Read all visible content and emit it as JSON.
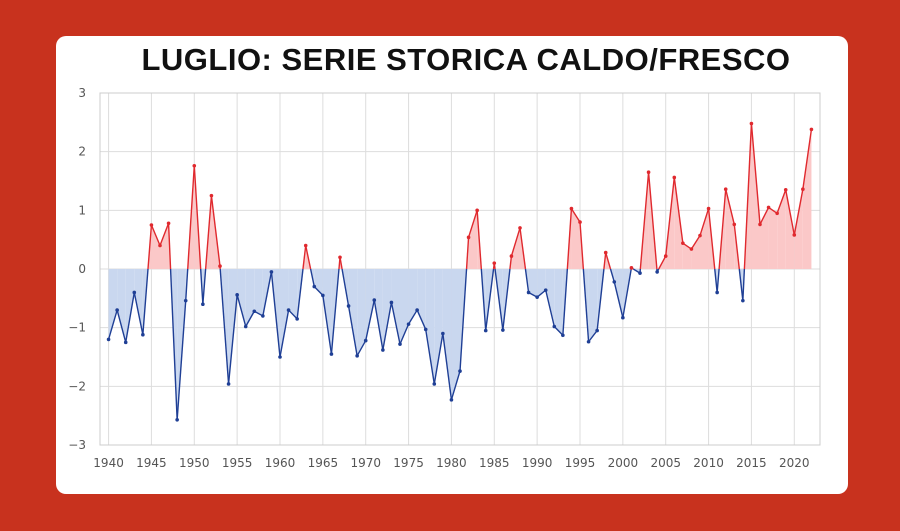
{
  "title": "LUGLIO: SERIE STORICA CALDO/FRESCO",
  "colors": {
    "background": "#c8321e",
    "warm_line": "#e0292e",
    "warm_fill": "#fbc8c8",
    "cool_line": "#1f3f95",
    "cool_fill": "#c9d7ef",
    "grid": "#dddddd"
  },
  "chart_data": {
    "type": "area",
    "title": "LUGLIO: SERIE STORICA CALDO/FRESCO",
    "xlabel": "",
    "ylabel": "",
    "xlim": [
      1939,
      2023
    ],
    "ylim": [
      -3,
      3
    ],
    "x_ticks": [
      1940,
      1945,
      1950,
      1955,
      1960,
      1965,
      1970,
      1975,
      1980,
      1985,
      1990,
      1995,
      2000,
      2005,
      2010,
      2015,
      2020
    ],
    "y_ticks": [
      -3,
      -2,
      -1,
      0,
      1,
      2,
      3
    ],
    "grid": true,
    "series": [
      {
        "x": [
          1940,
          1941,
          1942,
          1943,
          1944,
          1945,
          1946,
          1947,
          1948,
          1949,
          1950,
          1951,
          1952,
          1953,
          1954,
          1955,
          1956,
          1957,
          1958,
          1959,
          1960,
          1961,
          1962,
          1963,
          1964,
          1965,
          1966,
          1967,
          1968,
          1969,
          1970,
          1971,
          1972,
          1973,
          1974,
          1975,
          1976,
          1977,
          1978,
          1979,
          1980,
          1981,
          1982,
          1983,
          1984,
          1985,
          1986,
          1987,
          1988,
          1989,
          1990,
          1991,
          1992,
          1993,
          1994,
          1995,
          1996,
          1997,
          1998,
          1999,
          2000,
          2001,
          2002,
          2003,
          2004,
          2005,
          2006,
          2007,
          2008,
          2009,
          2010,
          2011,
          2012,
          2013,
          2014,
          2015,
          2016,
          2017,
          2018,
          2019,
          2020,
          2021,
          2022
        ],
        "values": [
          -1.2,
          -0.7,
          -1.25,
          -0.4,
          -1.12,
          0.75,
          0.4,
          0.78,
          -2.57,
          -0.54,
          1.76,
          -0.6,
          1.25,
          0.05,
          -1.96,
          -0.44,
          -0.98,
          -0.72,
          -0.8,
          -0.05,
          -1.5,
          -0.7,
          -0.85,
          0.4,
          -0.3,
          -0.45,
          -1.45,
          0.2,
          -0.63,
          -1.48,
          -1.22,
          -0.53,
          -1.38,
          -0.57,
          -1.28,
          -0.94,
          -0.7,
          -1.03,
          -1.96,
          -1.1,
          -2.23,
          -1.74,
          0.54,
          1.0,
          -1.05,
          0.1,
          -1.04,
          0.22,
          0.7,
          -0.4,
          -0.48,
          -0.36,
          -0.98,
          -1.13,
          1.03,
          0.8,
          -1.24,
          -1.05,
          0.28,
          -0.22,
          -0.83,
          0.02,
          -0.07,
          1.65,
          -0.05,
          0.22,
          1.56,
          0.44,
          0.34,
          0.57,
          1.03,
          -0.4,
          1.36,
          0.76,
          -0.54,
          2.48,
          0.76,
          1.05,
          0.95,
          1.35,
          0.58,
          1.36,
          2.38
        ]
      }
    ]
  }
}
